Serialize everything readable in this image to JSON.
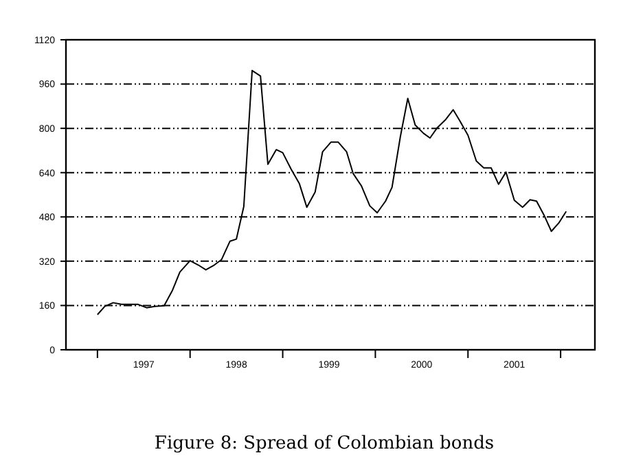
{
  "chart_data": {
    "type": "line",
    "title": "Figure 8: Spread of Colombian bonds",
    "x": [
      1997.0,
      1997.08,
      1997.17,
      1997.26,
      1997.36,
      1997.44,
      1997.53,
      1997.62,
      1997.72,
      1997.81,
      1997.89,
      1998.0,
      1998.09,
      1998.17,
      1998.26,
      1998.34,
      1998.43,
      1998.5,
      1998.58,
      1998.67,
      1998.76,
      1998.84,
      1998.93,
      1999.0,
      1999.09,
      1999.18,
      1999.26,
      1999.35,
      1999.43,
      1999.52,
      1999.6,
      1999.69,
      1999.76,
      1999.85,
      1999.94,
      2000.02,
      2000.11,
      2000.18,
      2000.27,
      2000.35,
      2000.43,
      2000.52,
      2000.59,
      2000.67,
      2000.76,
      2000.84,
      2000.91,
      2001.0,
      2001.09,
      2001.17,
      2001.25,
      2001.33,
      2001.41,
      2001.5,
      2001.59,
      2001.67,
      2001.74,
      2001.82,
      2001.9,
      2001.98,
      2002.06
    ],
    "series": [
      {
        "color": "#000000",
        "values": [
          127,
          157,
          170,
          164,
          164,
          164,
          152,
          157,
          159,
          215,
          281,
          322,
          306,
          289,
          306,
          326,
          392,
          400,
          518,
          1009,
          989,
          670,
          723,
          712,
          653,
          600,
          515,
          570,
          715,
          750,
          750,
          715,
          637,
          592,
          520,
          495,
          537,
          587,
          770,
          908,
          812,
          782,
          765,
          803,
          832,
          867,
          828,
          775,
          682,
          657,
          657,
          598,
          642,
          540,
          515,
          542,
          537,
          487,
          428,
          458,
          500
        ]
      }
    ],
    "xlim": [
      1996.66,
      2002.37
    ],
    "xticks": [
      {
        "value": 1997,
        "label": null
      },
      {
        "value": 1997.5,
        "label": "1997"
      },
      {
        "value": 1998,
        "label": null
      },
      {
        "value": 1998.5,
        "label": "1998"
      },
      {
        "value": 1999,
        "label": null
      },
      {
        "value": 1999.5,
        "label": "1999"
      },
      {
        "value": 2000,
        "label": null
      },
      {
        "value": 2000.5,
        "label": "2000"
      },
      {
        "value": 2001,
        "label": null
      },
      {
        "value": 2001.5,
        "label": "2001"
      },
      {
        "value": 2002,
        "label": null
      }
    ],
    "ylim": [
      0,
      1120
    ],
    "yticks": [
      0,
      160,
      320,
      480,
      640,
      800,
      960,
      1120
    ],
    "grid": "y",
    "marker": "none",
    "line_style": "solid"
  }
}
